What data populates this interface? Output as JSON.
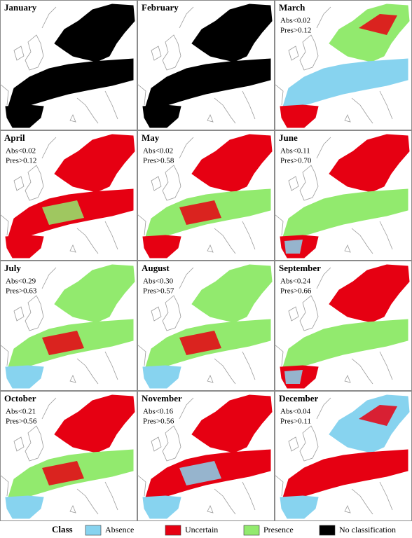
{
  "panels": [
    {
      "month": "January"
    },
    {
      "month": "February"
    },
    {
      "month": "March",
      "abs": "Abs<0.02",
      "pres": "Pres>0.12"
    },
    {
      "month": "April",
      "abs": "Abs<0.02",
      "pres": "Pres>0.12"
    },
    {
      "month": "May",
      "abs": "Abs<0.02",
      "pres": "Pres>0.58"
    },
    {
      "month": "June",
      "abs": "Abs<0.11",
      "pres": "Pres>0.70"
    },
    {
      "month": "July",
      "abs": "Abs<0.29",
      "pres": "Pres>0.63"
    },
    {
      "month": "August",
      "abs": "Abs<0.30",
      "pres": "Pres>0.57"
    },
    {
      "month": "September",
      "abs": "Abs<0.24",
      "pres": "Pres>0.66"
    },
    {
      "month": "October",
      "abs": "Abs<0.21",
      "pres": "Pres>0.56"
    },
    {
      "month": "November",
      "abs": "Abs<0.16",
      "pres": "Pres>0.56"
    },
    {
      "month": "December",
      "abs": "Abs<0.04",
      "pres": "Pres>0.11"
    }
  ],
  "legend": {
    "title": "Class",
    "items": [
      {
        "label": "Absence",
        "color": "#87d3ef"
      },
      {
        "label": "Uncertain",
        "color": "#e60012"
      },
      {
        "label": "Presence",
        "color": "#92ea6e"
      },
      {
        "label": "No classification",
        "color": "#000000"
      }
    ]
  }
}
